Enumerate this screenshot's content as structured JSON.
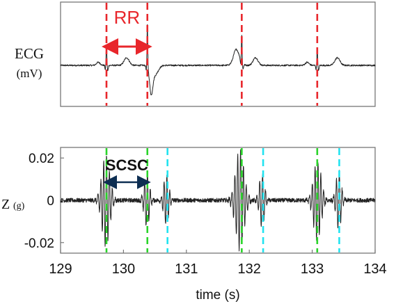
{
  "chart_data": [
    {
      "type": "line",
      "panel": "top",
      "ylabel": "ECG",
      "yunit": "(mV)",
      "xlim": [
        129,
        134
      ],
      "xticks_shown": false,
      "series": [
        {
          "values": []
        }
      ],
      "r_peaks_s": [
        129.73,
        130.38,
        131.88,
        133.08
      ],
      "beats": [
        {
          "t": 129.73,
          "r": 0.55
        },
        {
          "t": 130.38,
          "r": 1.1,
          "s": -0.65
        },
        {
          "t": 131.88,
          "r": 0.7
        },
        {
          "t": 133.08,
          "r": 0.45
        }
      ],
      "p_waves_s": [
        129.6,
        131.78,
        132.92
      ],
      "t_waves_s": [
        130.05,
        132.1,
        133.4
      ],
      "marker_color": "#e8262b",
      "annotation": {
        "label": "RR",
        "from": 129.73,
        "to": 130.38,
        "color": "#e8262b"
      }
    },
    {
      "type": "line",
      "panel": "bottom",
      "ylabel": "Z",
      "yunit": "(g)",
      "xlabel": "time (s)",
      "xlim": [
        129,
        134
      ],
      "ylim": [
        -0.025,
        0.025
      ],
      "yticks": [
        0.02,
        0,
        -0.02
      ],
      "ytick_labels": [
        "0.02",
        "0",
        "-0.02"
      ],
      "xticks": [
        129,
        130,
        131,
        132,
        133,
        134
      ],
      "xtick_labels": [
        "129",
        "130",
        "131",
        "132",
        "133",
        "134"
      ],
      "series": [
        {
          "values": []
        }
      ],
      "bursts": [
        {
          "t": 129.72,
          "amp": 0.022,
          "dur": 0.18
        },
        {
          "t": 130.37,
          "amp": 0.013,
          "dur": 0.12
        },
        {
          "t": 130.68,
          "amp": 0.012,
          "dur": 0.12
        },
        {
          "t": 131.85,
          "amp": 0.024,
          "dur": 0.2
        },
        {
          "t": 132.2,
          "amp": 0.013,
          "dur": 0.12
        },
        {
          "t": 133.08,
          "amp": 0.019,
          "dur": 0.18
        },
        {
          "t": 133.42,
          "amp": 0.014,
          "dur": 0.12
        }
      ],
      "green_markers_s": [
        129.73,
        130.38,
        131.88,
        133.08
      ],
      "cyan_markers_s": [
        130.7,
        132.22,
        133.43
      ],
      "green_color": "#2ad42a",
      "cyan_color": "#22e3f0",
      "annotation": {
        "label": "SCSC",
        "from": 129.73,
        "to": 130.38,
        "color": "#0d2e52"
      }
    }
  ]
}
